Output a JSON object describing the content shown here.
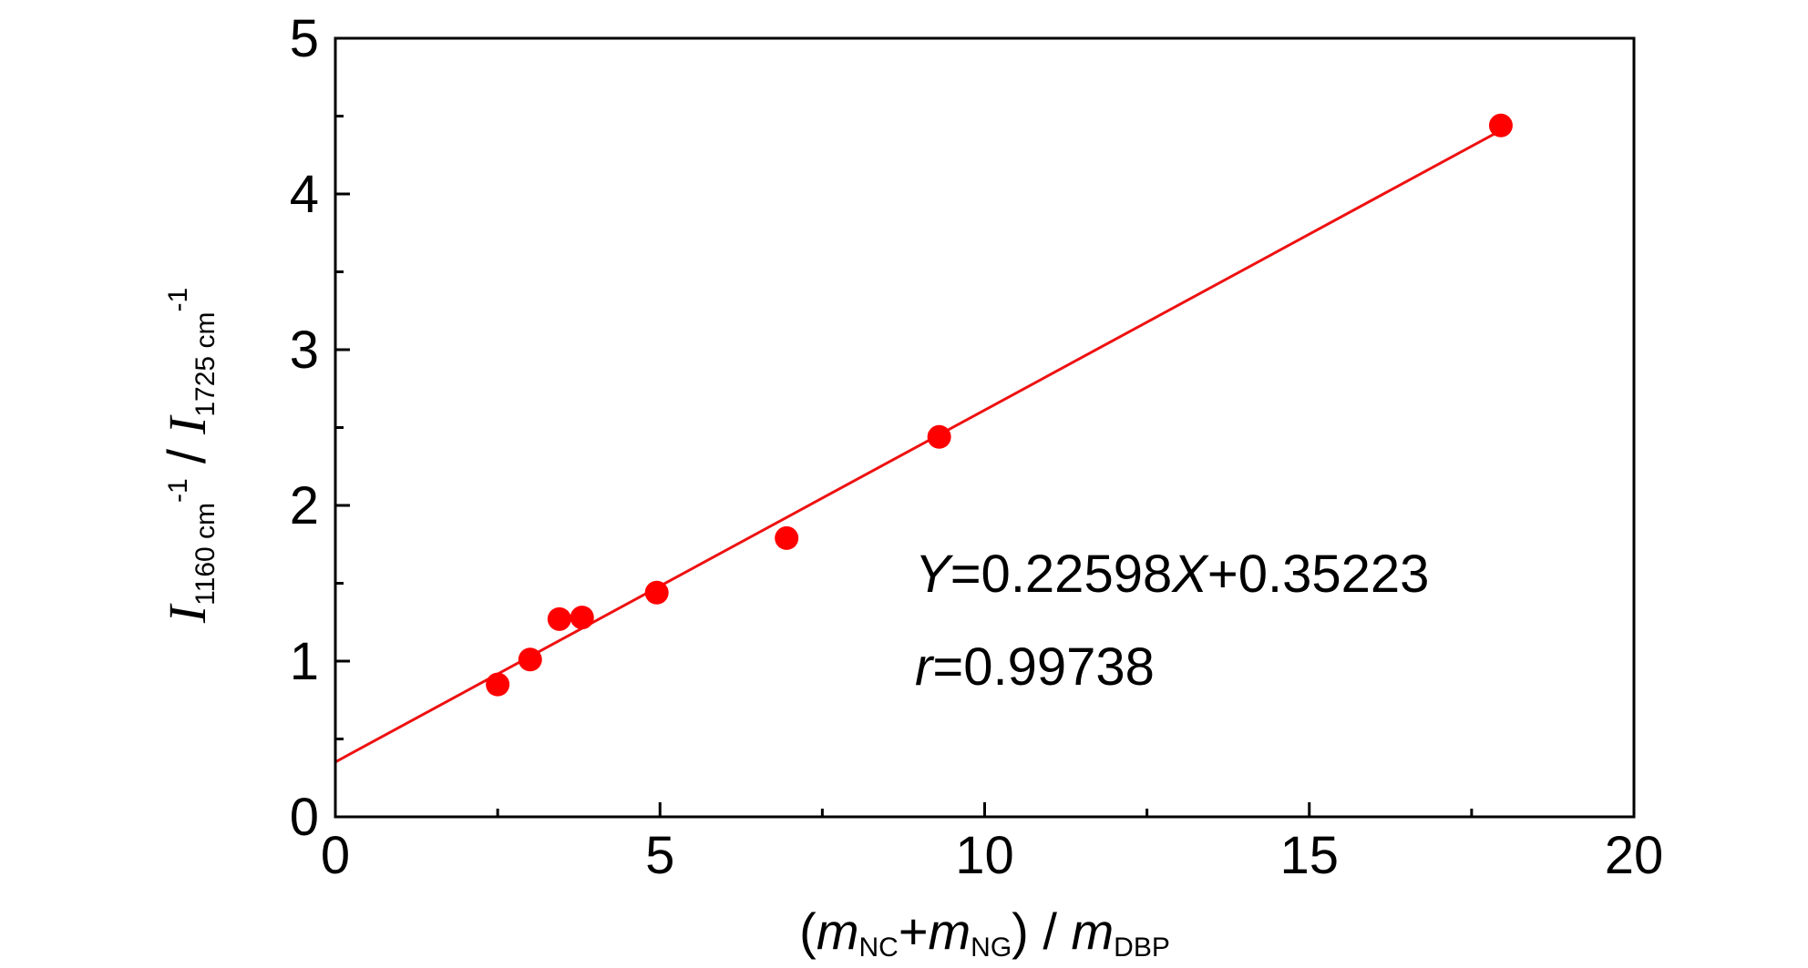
{
  "chart_data": {
    "type": "scatter",
    "xlabel": {
      "pre": "(",
      "m1": "m",
      "sub1": "NC",
      "plus": "+",
      "m2": "m",
      "sub2": "NG",
      "post": ") / ",
      "m3": "m",
      "sub3": "DBP"
    },
    "ylabel": {
      "I1": "I",
      "sub1": "1160 cm",
      "sup1": "-1",
      "slash": " / ",
      "I2": "I",
      "sub2": "1725 cm",
      "sup2": "-1"
    },
    "xlim": [
      0,
      20
    ],
    "ylim": [
      0,
      5
    ],
    "xticks": [
      0,
      5,
      10,
      15,
      20
    ],
    "yticks": [
      0,
      1,
      2,
      3,
      4,
      5
    ],
    "x_tick_labels": [
      "0",
      "5",
      "10",
      "15",
      "20"
    ],
    "y_tick_labels": [
      "0",
      "1",
      "2",
      "3",
      "4",
      "5"
    ],
    "grid": false,
    "points": [
      {
        "x": 2.5,
        "y": 0.85
      },
      {
        "x": 3.0,
        "y": 1.01
      },
      {
        "x": 3.45,
        "y": 1.27
      },
      {
        "x": 3.8,
        "y": 1.28
      },
      {
        "x": 4.95,
        "y": 1.44
      },
      {
        "x": 6.95,
        "y": 1.79
      },
      {
        "x": 9.3,
        "y": 2.44
      },
      {
        "x": 17.95,
        "y": 4.44
      }
    ],
    "fit": {
      "slope": 0.22598,
      "intercept": 0.35223,
      "x_range": [
        0,
        17.95
      ]
    },
    "equation": {
      "Y": "Y",
      "mid": "=0.22598",
      "X": "X",
      "rest": "+0.35223"
    },
    "correlation": {
      "r": "r",
      "value": "=0.99738"
    },
    "point_color": "#ff0000",
    "line_color": "#ee1111"
  }
}
